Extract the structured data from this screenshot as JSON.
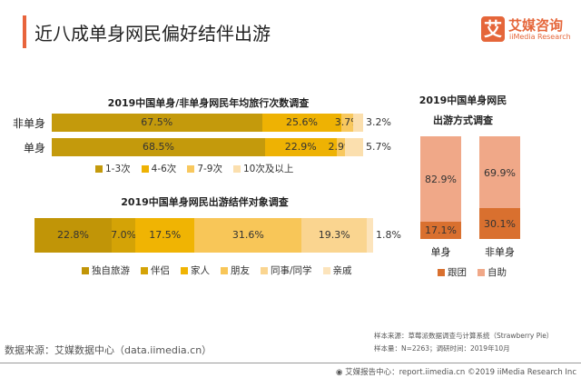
{
  "header": {
    "title": "近八成单身网民偏好结伴出游",
    "logo_mark": "艾",
    "logo_cn": "艾媒咨询",
    "logo_en": "iiMedia Research",
    "accent": "#e8643c"
  },
  "chart_data": [
    {
      "type": "bar",
      "orientation": "horizontal-stacked",
      "title": "2019中国单身/非单身网民年均旅行次数调查",
      "categories": [
        "非单身",
        "单身"
      ],
      "series": [
        {
          "name": "1-3次",
          "values": [
            67.5,
            68.5
          ],
          "color": "#c49a0c"
        },
        {
          "name": "4-6次",
          "values": [
            25.6,
            22.9
          ],
          "color": "#eeb203"
        },
        {
          "name": "7-9次",
          "values": [
            3.7,
            2.9
          ],
          "color": "#f8c85e"
        },
        {
          "name": "10次及以上",
          "values": [
            3.2,
            5.7
          ],
          "color": "#fbdfae"
        }
      ],
      "unit": "%",
      "legend": "bottom"
    },
    {
      "type": "bar",
      "orientation": "horizontal-stacked",
      "title": "2019中国单身网民出游结伴对象调查",
      "categories": [
        ""
      ],
      "series": [
        {
          "name": "独自旅游",
          "values": [
            22.8
          ],
          "color": "#c19507"
        },
        {
          "name": "伴侣",
          "values": [
            7.0
          ],
          "color": "#d4a306"
        },
        {
          "name": "家人",
          "values": [
            17.5
          ],
          "color": "#f0b403"
        },
        {
          "name": "朋友",
          "values": [
            31.6
          ],
          "color": "#f8c658"
        },
        {
          "name": "同事/同学",
          "values": [
            19.3
          ],
          "color": "#fad590"
        },
        {
          "name": "亲戚",
          "values": [
            1.8
          ],
          "color": "#fce4bc"
        }
      ],
      "unit": "%",
      "legend": "bottom"
    },
    {
      "type": "bar",
      "orientation": "vertical-stacked",
      "title": "2019中国单身网民出游方式调查",
      "title_lines": [
        "2019中国单身网民",
        "出游方式调查"
      ],
      "categories": [
        "单身",
        "非单身"
      ],
      "series": [
        {
          "name": "跟团",
          "values": [
            17.1,
            30.1
          ],
          "color": "#d9702f"
        },
        {
          "name": "自助",
          "values": [
            82.9,
            69.9
          ],
          "color": "#f0a888"
        }
      ],
      "unit": "%",
      "legend": "bottom"
    }
  ],
  "footer": {
    "source": "数据来源：艾媒数据中心（data.iimedia.cn）",
    "sample_source": "样本来源：草莓派数据调查与计算系统（Strawberry Pie）",
    "sample_size": "样本量：N=2263；调研时间：2019年10月",
    "copyright": "艾媒报告中心：report.iimedia.cn ©2019 iiMedia Research Inc"
  }
}
